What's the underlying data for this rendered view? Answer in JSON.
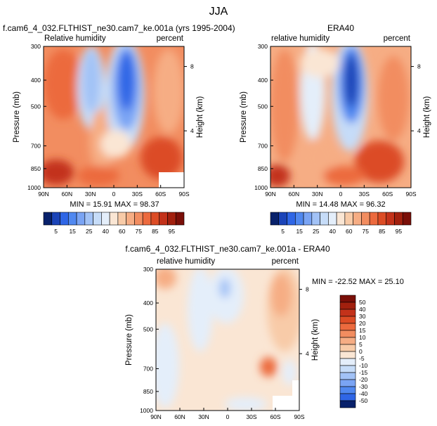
{
  "figure": {
    "title": "JJA"
  },
  "chart_data": [
    {
      "type": "heatmap",
      "title": "f.cam6_4_032.FLTHIST_ne30.cam7_ke.001a (yrs 1995-2004)",
      "left_label": "Relative humidity",
      "right_label": "percent",
      "ylabel": "Pressure (mb)",
      "right_axis_label": "Height (km)",
      "x_ticks": [
        "90N",
        "60N",
        "30N",
        "0",
        "30S",
        "60S",
        "90S"
      ],
      "y_ticks": [
        "300",
        "400",
        "500",
        "700",
        "850",
        "1000"
      ],
      "height_ticks": [
        "8",
        "4"
      ],
      "stats": "MIN = 15.91  MAX = 98.37",
      "min": 15.91,
      "max": 98.37,
      "ylim": [
        1000,
        300
      ],
      "xlim": [
        "90N",
        "90S"
      ],
      "missing_region": "60S-90S near surface"
    },
    {
      "type": "heatmap",
      "title": "ERA40",
      "left_label": "relative humidity",
      "right_label": "percent",
      "ylabel": "Pressure (mb)",
      "right_axis_label": "Height (km)",
      "x_ticks": [
        "90N",
        "60N",
        "30N",
        "0",
        "30S",
        "60S",
        "90S"
      ],
      "y_ticks": [
        "300",
        "400",
        "500",
        "700",
        "850",
        "1000"
      ],
      "height_ticks": [
        "8",
        "4"
      ],
      "stats": "MIN = 14.48  MAX = 96.32",
      "min": 14.48,
      "max": 96.32,
      "ylim": [
        1000,
        300
      ],
      "xlim": [
        "90N",
        "90S"
      ]
    },
    {
      "type": "heatmap",
      "title": "f.cam6_4_032.FLTHIST_ne30.cam7_ke.001a - ERA40",
      "left_label": "relative humidity",
      "right_label": "percent",
      "ylabel": "Pressure (mb)",
      "right_axis_label": "Height (km)",
      "x_ticks": [
        "90N",
        "60N",
        "30N",
        "0",
        "30S",
        "60S",
        "90S"
      ],
      "y_ticks": [
        "300",
        "400",
        "500",
        "700",
        "850",
        "1000"
      ],
      "height_ticks": [
        "8",
        "4"
      ],
      "stats": "MIN = -22.52  MAX = 25.10",
      "min": -22.52,
      "max": 25.1,
      "ylim": [
        1000,
        300
      ],
      "xlim": [
        "90N",
        "90S"
      ]
    }
  ],
  "colorbars": {
    "absolute": {
      "labels": [
        "5",
        "15",
        "25",
        "40",
        "60",
        "75",
        "85",
        "95"
      ],
      "colors": [
        "#08216b",
        "#1b44b8",
        "#2f66e6",
        "#5088f0",
        "#7aa4f4",
        "#a2c2f6",
        "#c6dcf8",
        "#e4eefa",
        "#fae6d4",
        "#f8cba8",
        "#f6ad84",
        "#f28d60",
        "#ec6a3e",
        "#dc4c25",
        "#c3321a",
        "#a2200e",
        "#7a0f08"
      ]
    },
    "difference": {
      "labels": [
        "50",
        "40",
        "30",
        "20",
        "15",
        "10",
        "5",
        "0",
        "-5",
        "-10",
        "-15",
        "-20",
        "-30",
        "-40",
        "-50"
      ],
      "colors": [
        "#7a0f08",
        "#a2200e",
        "#c3321a",
        "#dc4c25",
        "#ec6a3e",
        "#f28d60",
        "#f6ad84",
        "#f8cba8",
        "#fae6d4",
        "#e4eefa",
        "#c6dcf8",
        "#a2c2f6",
        "#7aa4f4",
        "#5088f0",
        "#2f66e6",
        "#08216b"
      ]
    }
  }
}
